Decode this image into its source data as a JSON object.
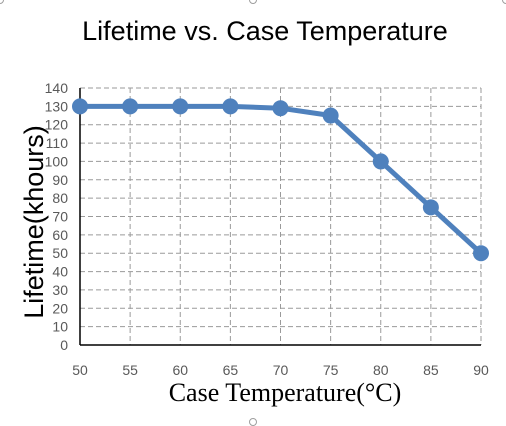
{
  "chart_data": {
    "type": "line",
    "title": "Lifetime vs. Case Temperature",
    "xlabel": "Case Temperature(°C)",
    "ylabel": "Lifetime(khours)",
    "x": [
      50,
      55,
      60,
      65,
      70,
      75,
      80,
      85,
      90
    ],
    "series": [
      {
        "values": [
          130,
          130,
          130,
          130,
          129,
          125,
          100,
          75,
          50
        ],
        "color": "#4f81bd"
      }
    ],
    "xlim": [
      50,
      90
    ],
    "ylim": [
      0,
      140
    ],
    "x_ticks": [
      "50",
      "55",
      "60",
      "65",
      "70",
      "75",
      "80",
      "85",
      "90"
    ],
    "y_ticks": [
      "0",
      "10",
      "20",
      "30",
      "40",
      "50",
      "60",
      "70",
      "80",
      "90",
      "100",
      "110",
      "120",
      "130",
      "140"
    ],
    "grid": true,
    "grid_style": "dashed",
    "legend": "none"
  }
}
